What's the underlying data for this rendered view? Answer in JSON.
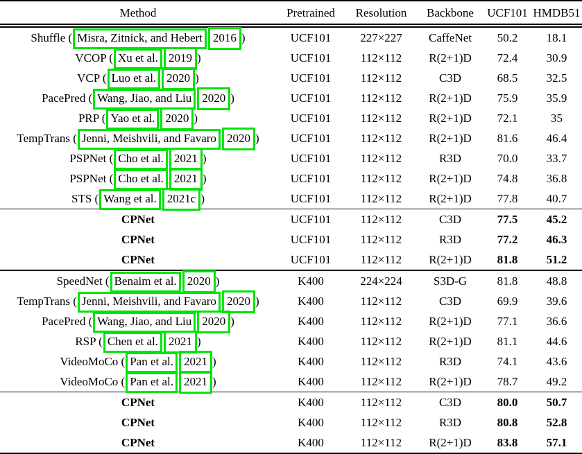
{
  "colors": {
    "annotation_green": "#00e40a",
    "rule_black": "#000000",
    "background": "#ffffff"
  },
  "table": {
    "columns": [
      "Method",
      "Pretrained",
      "Resolution",
      "Backbone",
      "UCF101",
      "HMDB51"
    ],
    "rows": [
      {
        "method": {
          "prefix": "Shuffle (",
          "authors": "Misra, Zitnick, and Hebert",
          "year": "2016",
          "suffix": ")"
        },
        "pretrained": "UCF101",
        "resolution": "227×227",
        "backbone": "CaffeNet",
        "ucf101": "50.2",
        "hmdb51": "18.1",
        "bold": false,
        "rule": "none"
      },
      {
        "method": {
          "prefix": "VCOP (",
          "authors": "Xu et al.",
          "year": "2019",
          "suffix": ")"
        },
        "pretrained": "UCF101",
        "resolution": "112×112",
        "backbone": "R(2+1)D",
        "ucf101": "72.4",
        "hmdb51": "30.9",
        "bold": false,
        "rule": "none"
      },
      {
        "method": {
          "prefix": "VCP (",
          "authors": "Luo et al.",
          "year": "2020",
          "suffix": ")"
        },
        "pretrained": "UCF101",
        "resolution": "112×112",
        "backbone": "C3D",
        "ucf101": "68.5",
        "hmdb51": "32.5",
        "bold": false,
        "rule": "none"
      },
      {
        "method": {
          "prefix": "PacePred (",
          "authors": "Wang, Jiao, and Liu",
          "year": "2020",
          "suffix": ")"
        },
        "pretrained": "UCF101",
        "resolution": "112×112",
        "backbone": "R(2+1)D",
        "ucf101": "75.9",
        "hmdb51": "35.9",
        "bold": false,
        "rule": "none"
      },
      {
        "method": {
          "prefix": "PRP (",
          "authors": "Yao et al.",
          "year": "2020",
          "suffix": ")"
        },
        "pretrained": "UCF101",
        "resolution": "112×112",
        "backbone": "R(2+1)D",
        "ucf101": "72.1",
        "hmdb51": "35",
        "bold": false,
        "rule": "none"
      },
      {
        "method": {
          "prefix": "TempTrans (",
          "authors": "Jenni, Meishvili, and Favaro",
          "year": "2020",
          "suffix": ")"
        },
        "pretrained": "UCF101",
        "resolution": "112×112",
        "backbone": "R(2+1)D",
        "ucf101": "81.6",
        "hmdb51": "46.4",
        "bold": false,
        "rule": "none"
      },
      {
        "method": {
          "prefix": "PSPNet (",
          "authors": "Cho et al.",
          "year": "2021",
          "suffix": ")"
        },
        "pretrained": "UCF101",
        "resolution": "112×112",
        "backbone": "R3D",
        "ucf101": "70.0",
        "hmdb51": "33.7",
        "bold": false,
        "rule": "none"
      },
      {
        "method": {
          "prefix": "PSPNet (",
          "authors": "Cho et al.",
          "year": "2021",
          "suffix": ")"
        },
        "pretrained": "UCF101",
        "resolution": "112×112",
        "backbone": "R(2+1)D",
        "ucf101": "74.8",
        "hmdb51": "36.8",
        "bold": false,
        "rule": "none"
      },
      {
        "method": {
          "prefix": "STS (",
          "authors": "Wang et al.",
          "year": "2021c",
          "suffix": ")"
        },
        "pretrained": "UCF101",
        "resolution": "112×112",
        "backbone": "R(2+1)D",
        "ucf101": "77.8",
        "hmdb51": "40.7",
        "bold": false,
        "rule": "none"
      },
      {
        "method": {
          "text": "CPNet"
        },
        "pretrained": "UCF101",
        "resolution": "112×112",
        "backbone": "C3D",
        "ucf101": "77.5",
        "hmdb51": "45.2",
        "bold": true,
        "rule": "thin"
      },
      {
        "method": {
          "text": "CPNet"
        },
        "pretrained": "UCF101",
        "resolution": "112×112",
        "backbone": "R3D",
        "ucf101": "77.2",
        "hmdb51": "46.3",
        "bold": true,
        "rule": "none"
      },
      {
        "method": {
          "text": "CPNet"
        },
        "pretrained": "UCF101",
        "resolution": "112×112",
        "backbone": "R(2+1)D",
        "ucf101": "81.8",
        "hmdb51": "51.2",
        "bold": true,
        "rule": "none"
      },
      {
        "method": {
          "prefix": "SpeedNet (",
          "authors": "Benaim et al.",
          "year": "2020",
          "suffix": ")"
        },
        "pretrained": "K400",
        "resolution": "224×224",
        "backbone": "S3D-G",
        "ucf101": "81.8",
        "hmdb51": "48.8",
        "bold": false,
        "rule": "thick"
      },
      {
        "method": {
          "prefix": "TempTrans (",
          "authors": "Jenni, Meishvili, and Favaro",
          "year": "2020",
          "suffix": ")"
        },
        "pretrained": "K400",
        "resolution": "112×112",
        "backbone": "C3D",
        "ucf101": "69.9",
        "hmdb51": "39.6",
        "bold": false,
        "rule": "none"
      },
      {
        "method": {
          "prefix": "PacePred (",
          "authors": "Wang, Jiao, and Liu",
          "year": "2020",
          "suffix": ")"
        },
        "pretrained": "K400",
        "resolution": "112×112",
        "backbone": "R(2+1)D",
        "ucf101": "77.1",
        "hmdb51": "36.6",
        "bold": false,
        "rule": "none"
      },
      {
        "method": {
          "prefix": "RSP (",
          "authors": "Chen et al.",
          "year": "2021",
          "suffix": ")"
        },
        "pretrained": "K400",
        "resolution": "112×112",
        "backbone": "R(2+1)D",
        "ucf101": "81.1",
        "hmdb51": "44.6",
        "bold": false,
        "rule": "none"
      },
      {
        "method": {
          "prefix": "VideoMoCo (",
          "authors": "Pan et al.",
          "year": "2021",
          "suffix": ")"
        },
        "pretrained": "K400",
        "resolution": "112×112",
        "backbone": "R3D",
        "ucf101": "74.1",
        "hmdb51": "43.6",
        "bold": false,
        "rule": "none"
      },
      {
        "method": {
          "prefix": "VideoMoCo (",
          "authors": "Pan et al.",
          "year": "2021",
          "suffix": ")"
        },
        "pretrained": "K400",
        "resolution": "112×112",
        "backbone": "R(2+1)D",
        "ucf101": "78.7",
        "hmdb51": "49.2",
        "bold": false,
        "rule": "none"
      },
      {
        "method": {
          "text": "CPNet"
        },
        "pretrained": "K400",
        "resolution": "112×112",
        "backbone": "C3D",
        "ucf101": "80.0",
        "hmdb51": "50.7",
        "bold": true,
        "rule": "thin"
      },
      {
        "method": {
          "text": "CPNet"
        },
        "pretrained": "K400",
        "resolution": "112×112",
        "backbone": "R3D",
        "ucf101": "80.8",
        "hmdb51": "52.8",
        "bold": true,
        "rule": "none"
      },
      {
        "method": {
          "text": "CPNet"
        },
        "pretrained": "K400",
        "resolution": "112×112",
        "backbone": "R(2+1)D",
        "ucf101": "83.8",
        "hmdb51": "57.1",
        "bold": true,
        "rule": "none"
      }
    ]
  }
}
